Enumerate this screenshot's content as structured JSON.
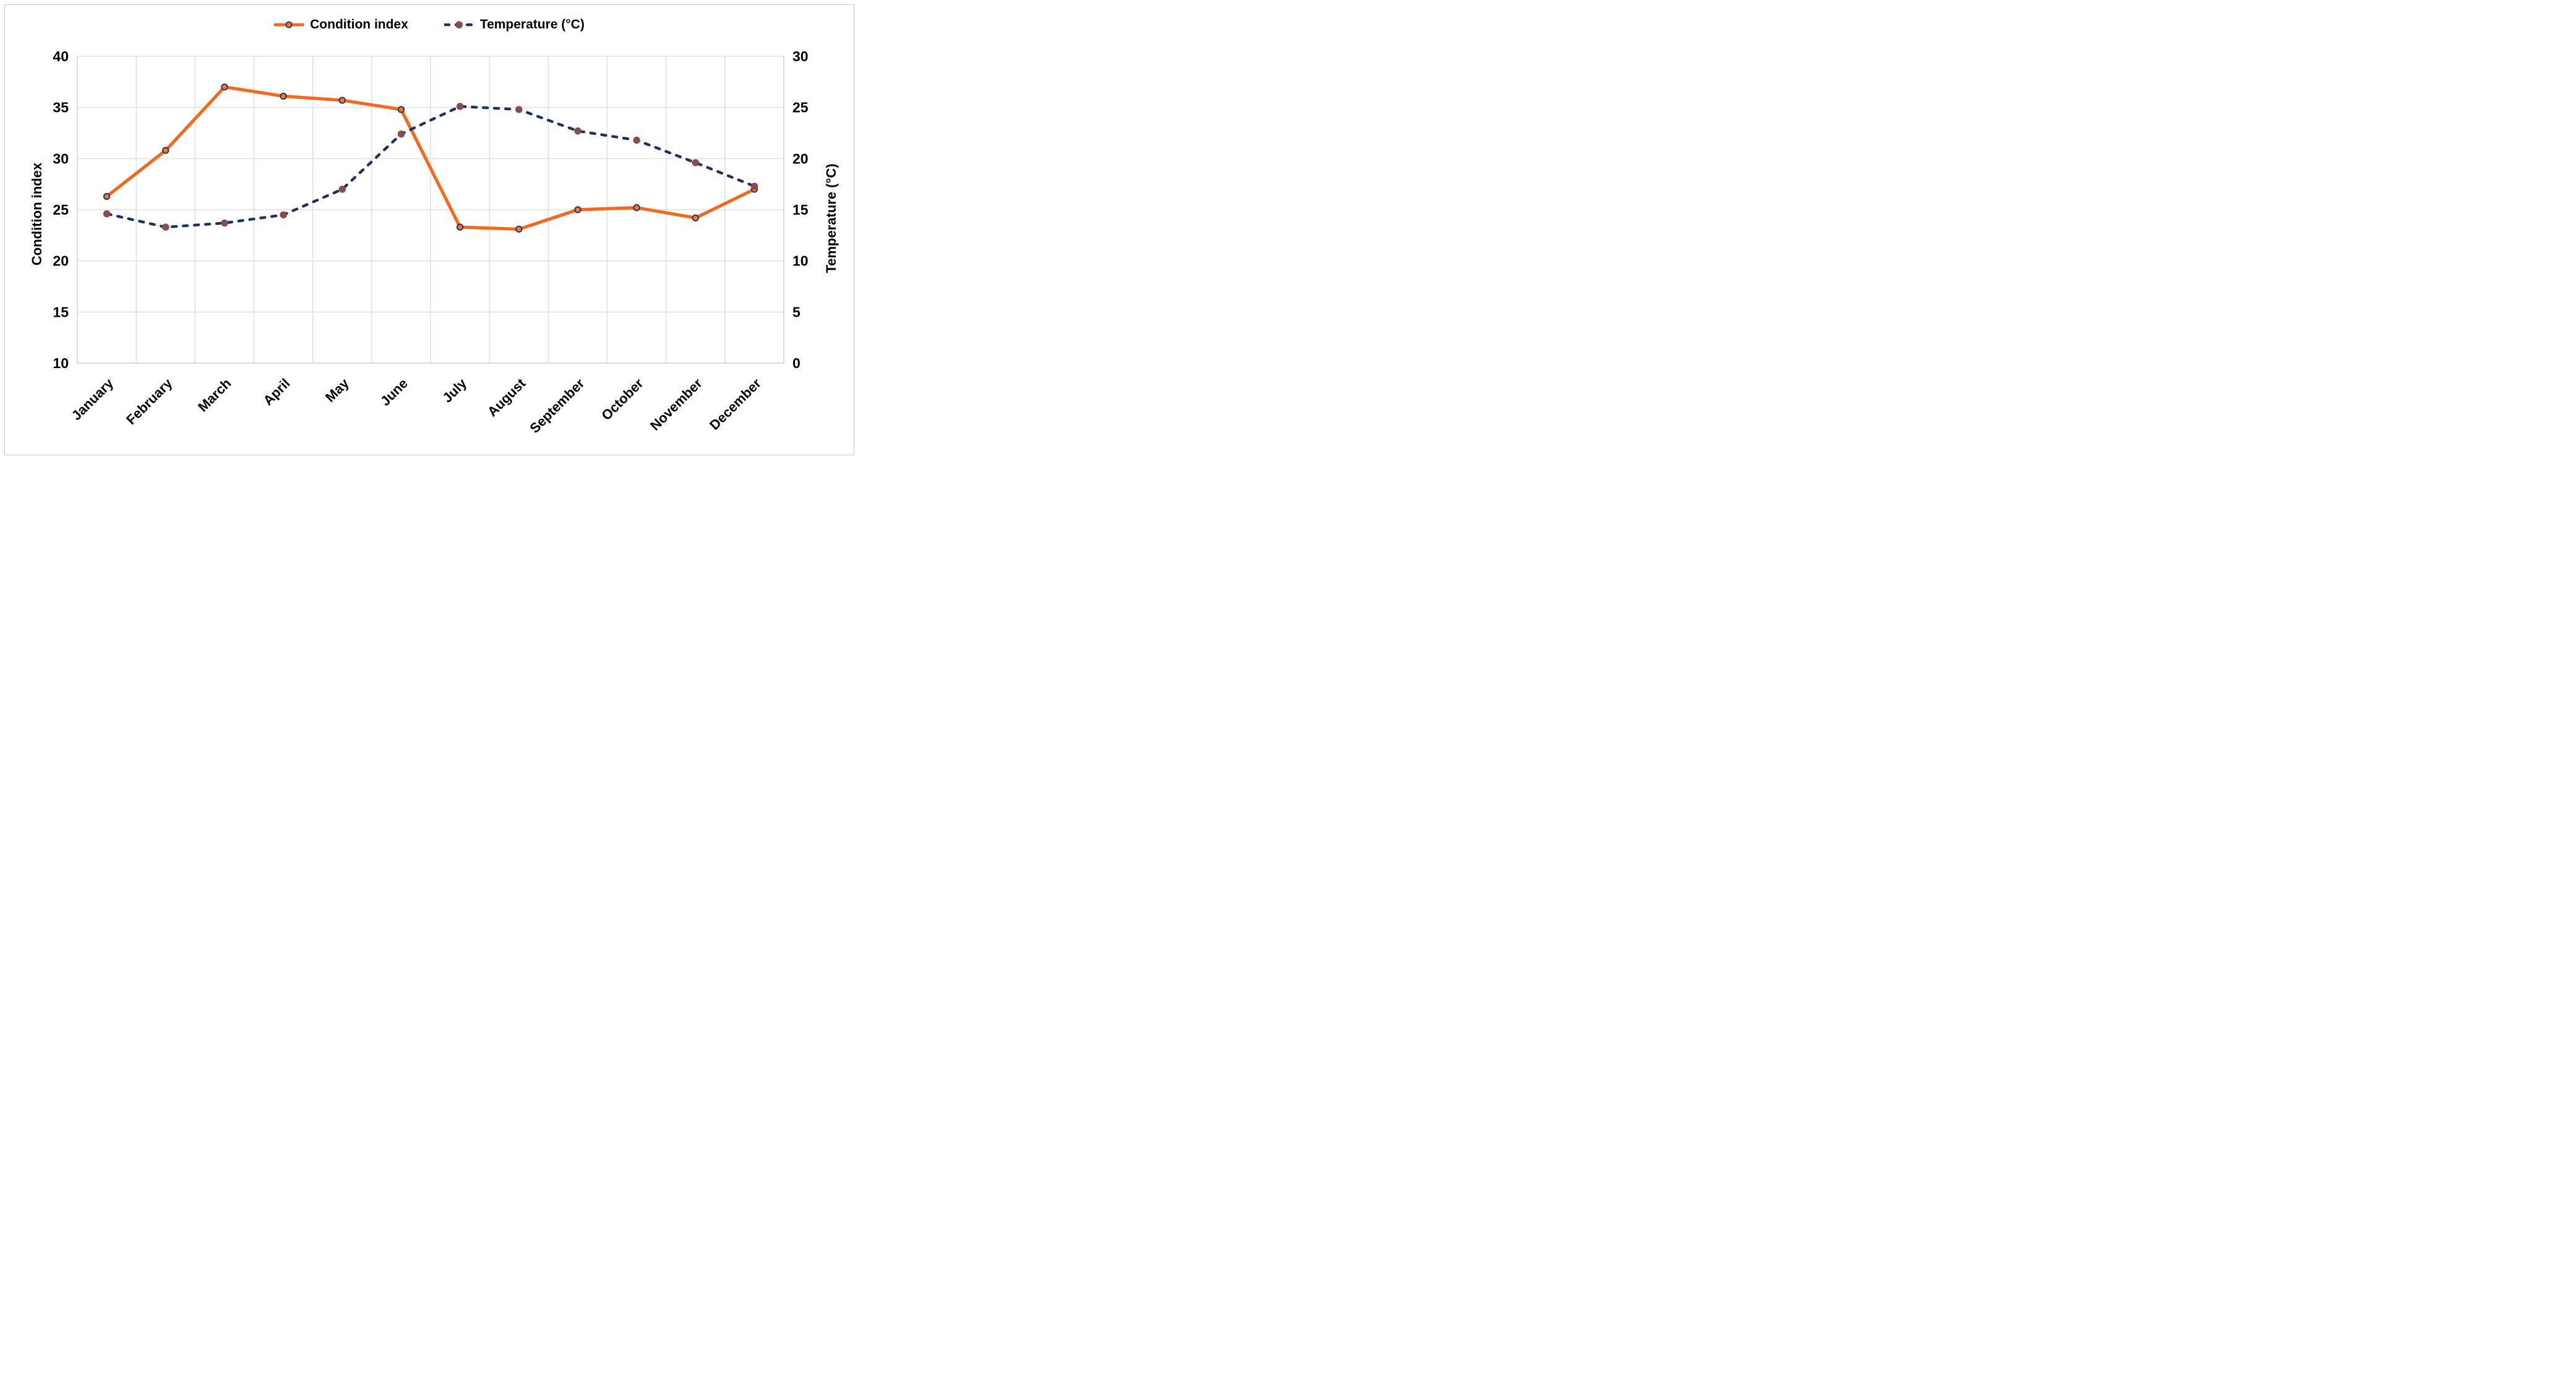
{
  "chart_data": {
    "type": "line",
    "categories": [
      "January",
      "February",
      "March",
      "April",
      "May",
      "June",
      "July",
      "August",
      "September",
      "October",
      "November",
      "December"
    ],
    "series": [
      {
        "name": "Condition index",
        "axis": "left",
        "style": "solid",
        "values": [
          26.3,
          30.8,
          37.0,
          36.1,
          35.7,
          34.8,
          23.3,
          23.1,
          25.0,
          25.2,
          24.2,
          27.0
        ],
        "line_color": "#f4691e",
        "marker_fill": "#f5772b",
        "marker_stroke": "#1c3160"
      },
      {
        "name": "Temperature (°C)",
        "axis": "right",
        "style": "dashed",
        "values": [
          14.6,
          13.3,
          13.7,
          14.5,
          17.0,
          22.4,
          25.1,
          24.8,
          22.7,
          21.8,
          19.6,
          17.3
        ],
        "line_color": "#1c3160",
        "marker_fill": "#2f7086",
        "marker_stroke": "#e02318"
      }
    ],
    "left_axis": {
      "title": "Condition index",
      "min": 10,
      "max": 40,
      "step": 5,
      "ticks": [
        "40",
        "35",
        "30",
        "25",
        "20",
        "15",
        "10"
      ]
    },
    "right_axis": {
      "title": "Temperature (°C)",
      "min": 0,
      "max": 30,
      "step": 5,
      "ticks": [
        "30",
        "25",
        "20",
        "15",
        "10",
        "5",
        "0"
      ]
    },
    "legend_position": "top-center",
    "grid": true
  },
  "legend": {
    "items": [
      {
        "label": "Condition index"
      },
      {
        "label": "Temperature (°C)"
      }
    ]
  },
  "colors": {
    "gridline": "#d9d9d9",
    "plot_border": "#c4c4c4",
    "frame_border": "#c9c9c9",
    "text": "#000000",
    "orange": "#f4691e",
    "navy": "#1c3160",
    "teal": "#2f7086",
    "red": "#e02318",
    "background": "#ffffff"
  }
}
